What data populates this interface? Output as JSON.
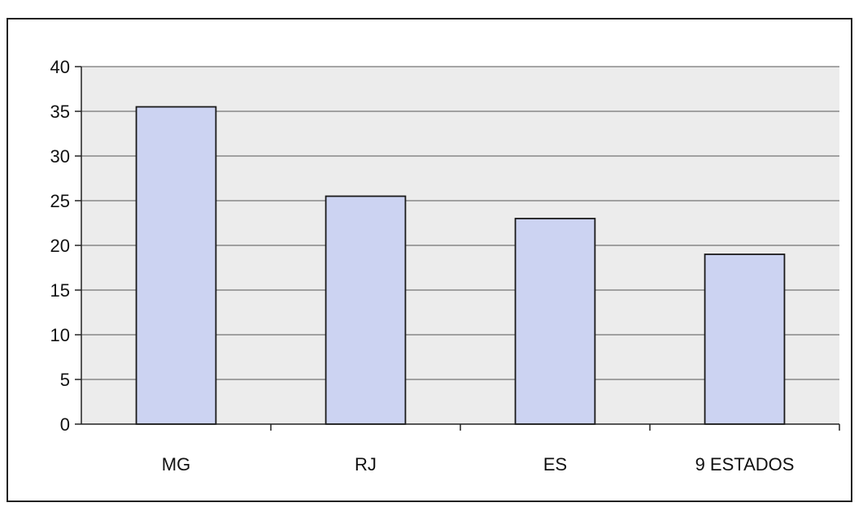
{
  "chart_data": {
    "type": "bar",
    "title": "",
    "xlabel": "",
    "ylabel": "",
    "categories": [
      "MG",
      "RJ",
      "ES",
      "9 ESTADOS"
    ],
    "values": [
      35.5,
      25.5,
      23,
      19
    ],
    "ylim": [
      0,
      40
    ],
    "yticks": [
      "0",
      "5",
      "10",
      "15",
      "20",
      "25",
      "30",
      "35",
      "40"
    ],
    "grid": true,
    "legend": "none",
    "colors": {
      "bar_fill": "#ccd3f2",
      "bar_stroke": "#1a1a1a",
      "plot_bg": "#ececec",
      "grid": "#555555"
    }
  }
}
